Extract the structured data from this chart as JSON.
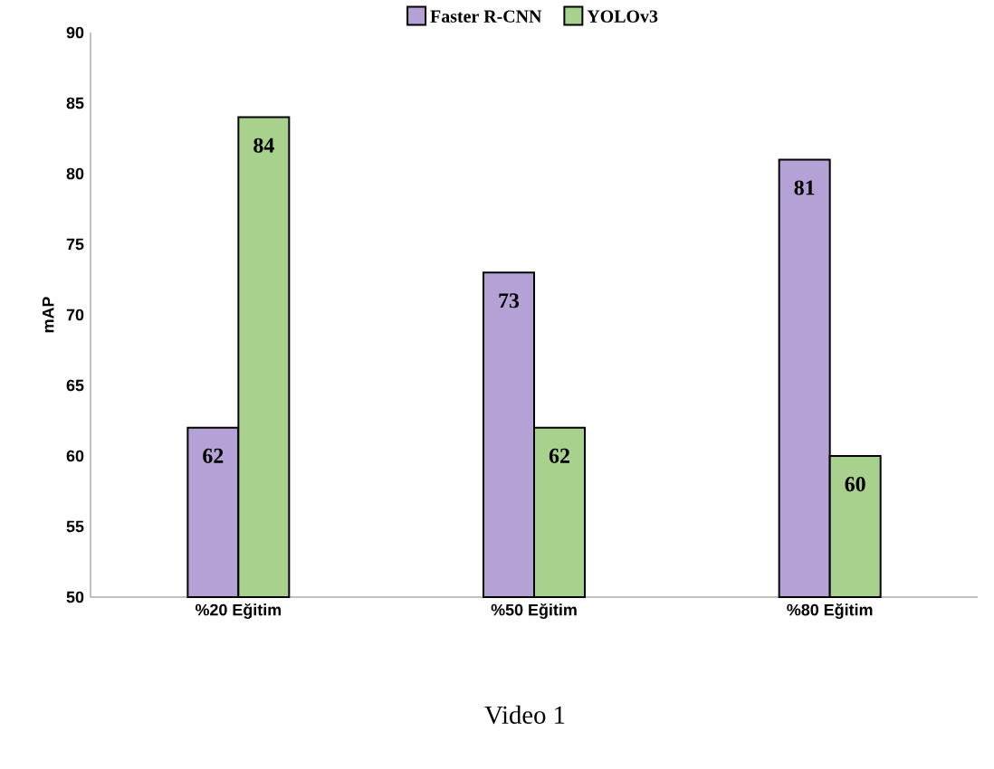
{
  "chart_data": {
    "type": "bar",
    "categories": [
      "%20 Eğitim",
      "%50 Eğitim",
      "%80 Eğitim"
    ],
    "series": [
      {
        "name": "Faster R-CNN",
        "color": "#b4a2d6",
        "values": [
          62,
          73,
          81
        ]
      },
      {
        "name": "YOLOv3",
        "color": "#a9d18e",
        "values": [
          84,
          62,
          60
        ]
      }
    ],
    "ylabel": "mAP",
    "ylim": [
      50,
      90
    ],
    "yticks": [
      50,
      55,
      60,
      65,
      70,
      75,
      80,
      85,
      90
    ],
    "data_labels": true,
    "legend": "top",
    "grid": false,
    "annotations": [
      "Video 1"
    ]
  }
}
